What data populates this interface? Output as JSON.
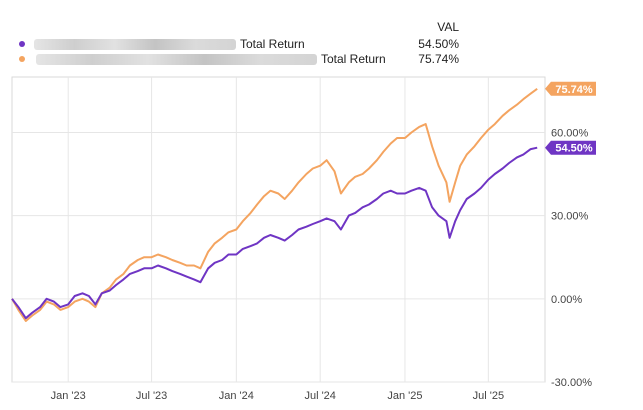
{
  "legend": {
    "column_header": "VAL",
    "items": [
      {
        "name": "Total Return",
        "value": "54.50%",
        "color": "#6f35c4"
      },
      {
        "name": "Total Return",
        "value": "75.74%",
        "color": "#f4a460"
      }
    ]
  },
  "chart_data": {
    "type": "line",
    "x_tick_labels": [
      "Jan '23",
      "Jul '23",
      "Jan '24",
      "Jul '24",
      "Jan '25",
      "Jul '25"
    ],
    "y_tick_labels": [
      "60.00%",
      "30.00%",
      "0.00%",
      "-30.00%"
    ],
    "y_ticks": [
      60,
      30,
      0,
      -30
    ],
    "ylim": [
      -30,
      80
    ],
    "xlim": [
      "2022-09-01",
      "2025-11-01"
    ],
    "grid": true,
    "legend_placement": "top",
    "series": [
      {
        "color": "#6f35c4",
        "end_label": "54.50%",
        "points": [
          [
            "2022-09-01",
            0
          ],
          [
            "2022-09-15",
            -3
          ],
          [
            "2022-10-01",
            -7
          ],
          [
            "2022-10-15",
            -5
          ],
          [
            "2022-11-01",
            -3
          ],
          [
            "2022-11-15",
            0
          ],
          [
            "2022-12-01",
            -1
          ],
          [
            "2022-12-15",
            -3
          ],
          [
            "2023-01-01",
            -2
          ],
          [
            "2023-01-15",
            1
          ],
          [
            "2023-02-01",
            2
          ],
          [
            "2023-02-15",
            1
          ],
          [
            "2023-03-01",
            -2
          ],
          [
            "2023-03-15",
            2
          ],
          [
            "2023-04-01",
            3
          ],
          [
            "2023-04-15",
            5
          ],
          [
            "2023-05-01",
            7
          ],
          [
            "2023-05-15",
            9
          ],
          [
            "2023-06-01",
            10
          ],
          [
            "2023-06-15",
            11
          ],
          [
            "2023-07-01",
            11
          ],
          [
            "2023-07-15",
            12
          ],
          [
            "2023-08-01",
            11
          ],
          [
            "2023-08-15",
            10
          ],
          [
            "2023-09-01",
            9
          ],
          [
            "2023-09-15",
            8
          ],
          [
            "2023-10-01",
            7
          ],
          [
            "2023-10-15",
            6
          ],
          [
            "2023-11-01",
            11
          ],
          [
            "2023-11-15",
            13
          ],
          [
            "2023-12-01",
            14
          ],
          [
            "2023-12-15",
            16
          ],
          [
            "2024-01-01",
            16
          ],
          [
            "2024-01-15",
            18
          ],
          [
            "2024-02-01",
            19
          ],
          [
            "2024-02-15",
            20
          ],
          [
            "2024-03-01",
            22
          ],
          [
            "2024-03-15",
            23
          ],
          [
            "2024-04-01",
            22
          ],
          [
            "2024-04-15",
            21
          ],
          [
            "2024-05-01",
            23
          ],
          [
            "2024-05-15",
            25
          ],
          [
            "2024-06-01",
            26
          ],
          [
            "2024-06-15",
            27
          ],
          [
            "2024-07-01",
            28
          ],
          [
            "2024-07-15",
            29
          ],
          [
            "2024-08-01",
            28
          ],
          [
            "2024-08-15",
            25
          ],
          [
            "2024-09-01",
            30
          ],
          [
            "2024-09-15",
            31
          ],
          [
            "2024-10-01",
            33
          ],
          [
            "2024-10-15",
            34
          ],
          [
            "2024-11-01",
            36
          ],
          [
            "2024-11-15",
            38
          ],
          [
            "2024-12-01",
            39
          ],
          [
            "2024-12-15",
            38
          ],
          [
            "2025-01-01",
            38
          ],
          [
            "2025-01-15",
            39
          ],
          [
            "2025-02-01",
            40
          ],
          [
            "2025-02-15",
            39
          ],
          [
            "2025-03-01",
            33
          ],
          [
            "2025-03-15",
            30
          ],
          [
            "2025-04-01",
            28
          ],
          [
            "2025-04-08",
            22
          ],
          [
            "2025-04-20",
            28
          ],
          [
            "2025-05-01",
            32
          ],
          [
            "2025-05-15",
            36
          ],
          [
            "2025-06-01",
            38
          ],
          [
            "2025-06-15",
            40
          ],
          [
            "2025-07-01",
            43
          ],
          [
            "2025-07-15",
            45
          ],
          [
            "2025-08-01",
            47
          ],
          [
            "2025-08-15",
            49
          ],
          [
            "2025-09-01",
            51
          ],
          [
            "2025-09-15",
            52
          ],
          [
            "2025-10-01",
            54
          ],
          [
            "2025-10-15",
            54.5
          ]
        ]
      },
      {
        "color": "#f4a460",
        "end_label": "75.74%",
        "points": [
          [
            "2022-09-01",
            0
          ],
          [
            "2022-09-15",
            -4
          ],
          [
            "2022-10-01",
            -8
          ],
          [
            "2022-10-15",
            -6
          ],
          [
            "2022-11-01",
            -4
          ],
          [
            "2022-11-15",
            -1
          ],
          [
            "2022-12-01",
            -2
          ],
          [
            "2022-12-15",
            -4
          ],
          [
            "2023-01-01",
            -3
          ],
          [
            "2023-01-15",
            -1
          ],
          [
            "2023-02-01",
            0
          ],
          [
            "2023-02-15",
            -1
          ],
          [
            "2023-03-01",
            -3
          ],
          [
            "2023-03-15",
            2
          ],
          [
            "2023-04-01",
            4
          ],
          [
            "2023-04-15",
            7
          ],
          [
            "2023-05-01",
            9
          ],
          [
            "2023-05-15",
            12
          ],
          [
            "2023-06-01",
            14
          ],
          [
            "2023-06-15",
            15
          ],
          [
            "2023-07-01",
            15
          ],
          [
            "2023-07-15",
            16
          ],
          [
            "2023-08-01",
            15
          ],
          [
            "2023-08-15",
            14
          ],
          [
            "2023-09-01",
            13
          ],
          [
            "2023-09-15",
            12
          ],
          [
            "2023-10-01",
            12
          ],
          [
            "2023-10-15",
            11
          ],
          [
            "2023-11-01",
            17
          ],
          [
            "2023-11-15",
            20
          ],
          [
            "2023-12-01",
            22
          ],
          [
            "2023-12-15",
            24
          ],
          [
            "2024-01-01",
            25
          ],
          [
            "2024-01-15",
            28
          ],
          [
            "2024-02-01",
            31
          ],
          [
            "2024-02-15",
            34
          ],
          [
            "2024-03-01",
            37
          ],
          [
            "2024-03-15",
            39
          ],
          [
            "2024-04-01",
            38
          ],
          [
            "2024-04-15",
            36
          ],
          [
            "2024-05-01",
            39
          ],
          [
            "2024-05-15",
            42
          ],
          [
            "2024-06-01",
            45
          ],
          [
            "2024-06-15",
            47
          ],
          [
            "2024-07-01",
            48
          ],
          [
            "2024-07-15",
            50
          ],
          [
            "2024-08-01",
            46
          ],
          [
            "2024-08-15",
            38
          ],
          [
            "2024-09-01",
            42
          ],
          [
            "2024-09-15",
            44
          ],
          [
            "2024-10-01",
            45
          ],
          [
            "2024-10-15",
            47
          ],
          [
            "2024-11-01",
            50
          ],
          [
            "2024-11-15",
            53
          ],
          [
            "2024-12-01",
            56
          ],
          [
            "2024-12-15",
            58
          ],
          [
            "2025-01-01",
            58
          ],
          [
            "2025-01-15",
            60
          ],
          [
            "2025-02-01",
            62
          ],
          [
            "2025-02-15",
            63
          ],
          [
            "2025-03-01",
            55
          ],
          [
            "2025-03-15",
            48
          ],
          [
            "2025-04-01",
            42
          ],
          [
            "2025-04-08",
            35
          ],
          [
            "2025-04-20",
            42
          ],
          [
            "2025-05-01",
            48
          ],
          [
            "2025-05-15",
            52
          ],
          [
            "2025-06-01",
            55
          ],
          [
            "2025-06-15",
            58
          ],
          [
            "2025-07-01",
            61
          ],
          [
            "2025-07-15",
            63
          ],
          [
            "2025-08-01",
            66
          ],
          [
            "2025-08-15",
            68
          ],
          [
            "2025-09-01",
            70
          ],
          [
            "2025-09-15",
            72
          ],
          [
            "2025-10-01",
            74
          ],
          [
            "2025-10-15",
            75.74
          ]
        ]
      }
    ]
  }
}
